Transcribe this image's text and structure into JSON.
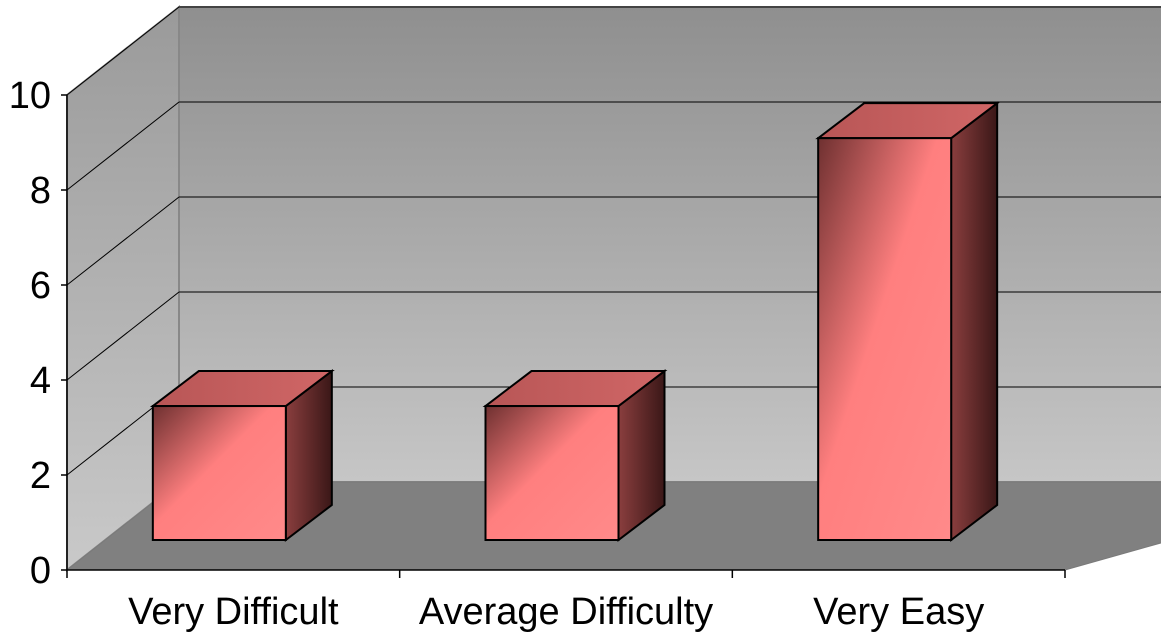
{
  "chart_data": {
    "type": "bar",
    "title": "",
    "xlabel": "",
    "ylabel": "",
    "categories": [
      "Very Difficult",
      "Average Difficulty",
      "Very Easy"
    ],
    "values": [
      3,
      3,
      9
    ],
    "ylim": [
      0,
      10
    ],
    "yticks": [
      "0",
      "2",
      "4",
      "6",
      "8",
      "10"
    ],
    "grid": true,
    "legend": "none",
    "three_d": true,
    "colors": {
      "bar": "#ff7f7f",
      "bar_top": "#c45c5c",
      "bar_side": "#6b2e2e",
      "back_wall_top": "#8f8f8f",
      "back_wall_bottom": "#c6c6c6",
      "side_wall": "#b3b3b3",
      "floor": "#808080",
      "gridline": "#000000"
    }
  }
}
